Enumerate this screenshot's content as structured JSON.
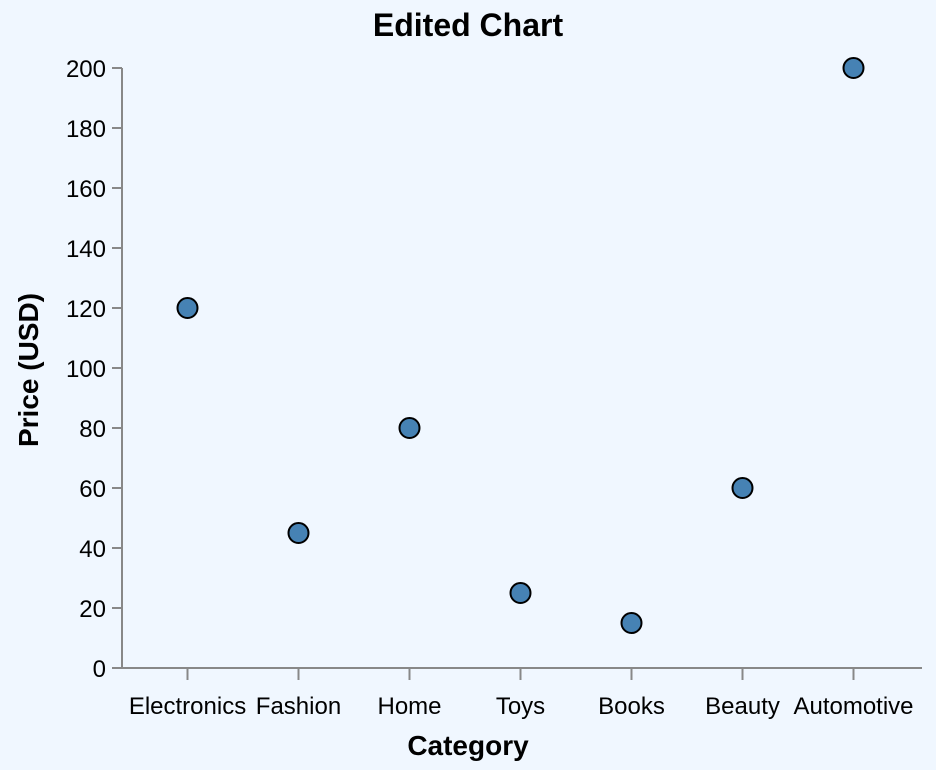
{
  "chart_data": {
    "type": "scatter",
    "title": "Edited Chart",
    "xlabel": "Category",
    "ylabel": "Price (USD)",
    "categories": [
      "Electronics",
      "Fashion",
      "Home",
      "Toys",
      "Books",
      "Beauty",
      "Automotive"
    ],
    "values": [
      120,
      45,
      80,
      25,
      15,
      60,
      200
    ],
    "ylim": [
      0,
      200
    ],
    "yticks": [
      0,
      20,
      40,
      60,
      80,
      100,
      120,
      140,
      160,
      180,
      200
    ],
    "grid": false,
    "point_color": "#4682b4",
    "point_stroke": "#000000",
    "axis_color": "#888888",
    "background": "#f0f7ff"
  }
}
